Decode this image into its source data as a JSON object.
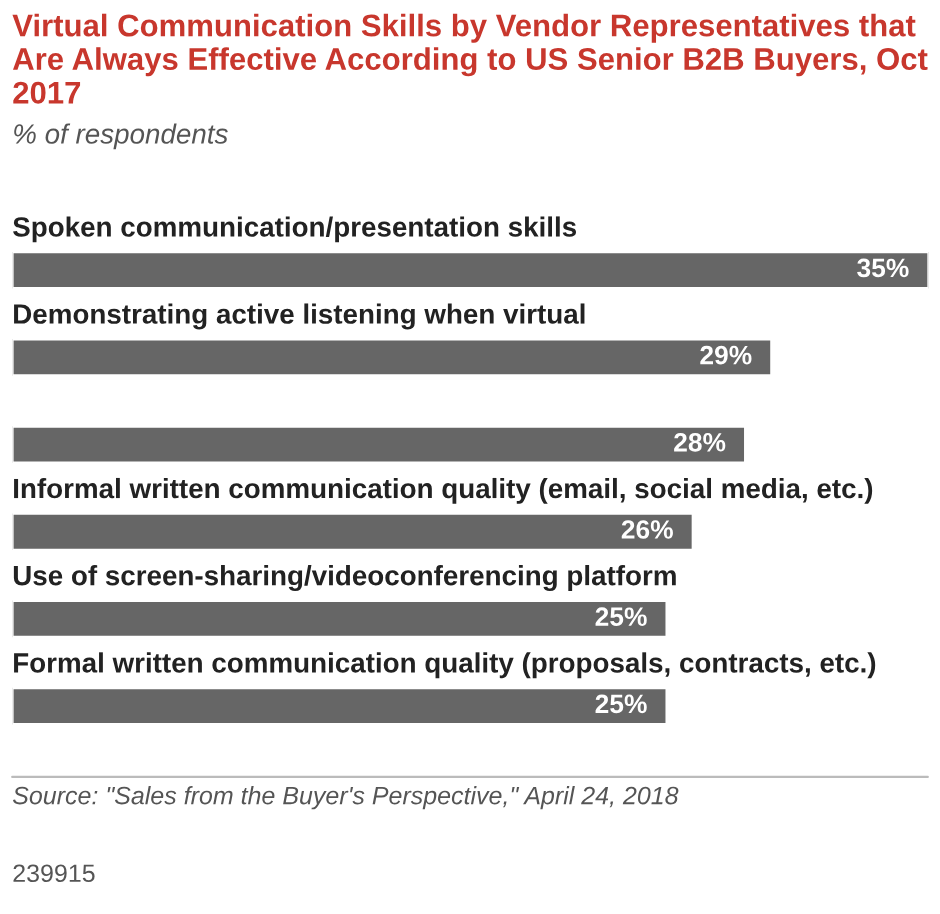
{
  "chart_data": {
    "type": "bar",
    "orientation": "horizontal",
    "title": "Virtual Communication Skills by Vendor Representatives that Are Always Effective According to US Senior B2B Buyers, Oct 2017",
    "subtitle": "% of respondents",
    "categories": [
      "Spoken communication/presentation skills",
      "Demonstrating active listening when virtual",
      null,
      "Informal written communication quality (email, social media, etc.)",
      "Use of screen-sharing/videoconferencing platform",
      "Formal written communication quality (proposals, contracts, etc.)"
    ],
    "values": [
      35,
      29,
      28,
      26,
      25,
      25
    ],
    "value_labels": [
      "35%",
      "29%",
      "28%",
      "26%",
      "25%",
      "25%"
    ],
    "color": "#666666",
    "annotations": [
      "Source: \"Sales from the Buyer's Perspective,\" April 24, 2018",
      "239915"
    ]
  }
}
